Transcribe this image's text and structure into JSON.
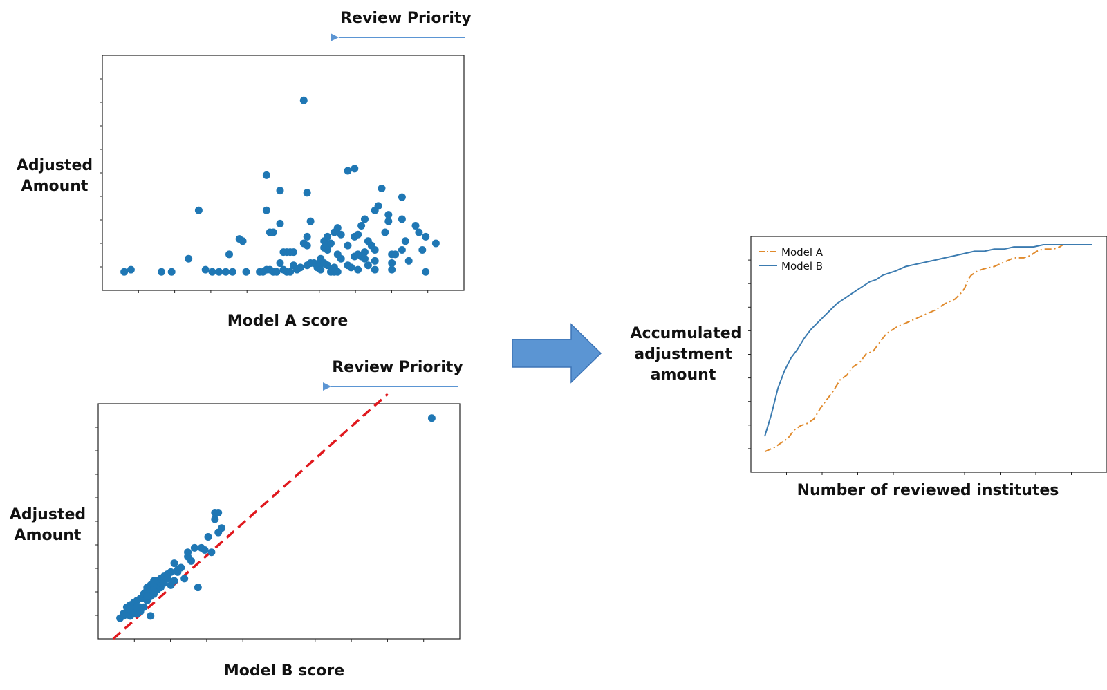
{
  "colors": {
    "point": "#1f77b4",
    "model_a_line": "#e08a2c",
    "model_b_line": "#3b7bb0",
    "diagonal": "#e0191e",
    "arrow_fill": "#5b95d3",
    "arrow_stroke": "#3d74b6",
    "priority_arrow": "#5b95d3"
  },
  "labels": {
    "review_priority_top": "Review Priority",
    "review_priority_bottom": "Review Priority",
    "transition_arrow_icon": "right-arrow-icon"
  },
  "chart_data": [
    {
      "type": "scatter",
      "xlabel": "Model A score",
      "ylabel_lines": [
        "Adjusted",
        "Amount"
      ],
      "xlim": [
        0,
        100
      ],
      "ylim": [
        0,
        100
      ],
      "grid": false,
      "points": [
        [
          4,
          4
        ],
        [
          6,
          5
        ],
        [
          15,
          4
        ],
        [
          18,
          4
        ],
        [
          23,
          10
        ],
        [
          26,
          32
        ],
        [
          28,
          5
        ],
        [
          30,
          4
        ],
        [
          32,
          4
        ],
        [
          34,
          4
        ],
        [
          36,
          4
        ],
        [
          35,
          12
        ],
        [
          38,
          19
        ],
        [
          39,
          18
        ],
        [
          40,
          4
        ],
        [
          44,
          4
        ],
        [
          45,
          4
        ],
        [
          46,
          5
        ],
        [
          47,
          5
        ],
        [
          48,
          4
        ],
        [
          49,
          4
        ],
        [
          46,
          48
        ],
        [
          46,
          32
        ],
        [
          47,
          22
        ],
        [
          48,
          22
        ],
        [
          50,
          26
        ],
        [
          50,
          41
        ],
        [
          51,
          13
        ],
        [
          51,
          5
        ],
        [
          50,
          8
        ],
        [
          52,
          13
        ],
        [
          53,
          13
        ],
        [
          52,
          4
        ],
        [
          53,
          4
        ],
        [
          54,
          13
        ],
        [
          54,
          7
        ],
        [
          55,
          5
        ],
        [
          56,
          6
        ],
        [
          57,
          17
        ],
        [
          57,
          82
        ],
        [
          58,
          7
        ],
        [
          58,
          16
        ],
        [
          58,
          20
        ],
        [
          58,
          40
        ],
        [
          59,
          8
        ],
        [
          59,
          27
        ],
        [
          60,
          8
        ],
        [
          61,
          6
        ],
        [
          62,
          5
        ],
        [
          62,
          8
        ],
        [
          62,
          10
        ],
        [
          63,
          8
        ],
        [
          63,
          15
        ],
        [
          63,
          18
        ],
        [
          64,
          7
        ],
        [
          64,
          14
        ],
        [
          64,
          16
        ],
        [
          64,
          20
        ],
        [
          65,
          4
        ],
        [
          65,
          17
        ],
        [
          66,
          6
        ],
        [
          66,
          4
        ],
        [
          66,
          22
        ],
        [
          67,
          4
        ],
        [
          67,
          12
        ],
        [
          68,
          10
        ],
        [
          68,
          21
        ],
        [
          67,
          24
        ],
        [
          70,
          7
        ],
        [
          70,
          16
        ],
        [
          70,
          50
        ],
        [
          71,
          6
        ],
        [
          72,
          11
        ],
        [
          72,
          20
        ],
        [
          72,
          51
        ],
        [
          73,
          5
        ],
        [
          73,
          21
        ],
        [
          73,
          12
        ],
        [
          74,
          11
        ],
        [
          74,
          25
        ],
        [
          75,
          13
        ],
        [
          75,
          28
        ],
        [
          75,
          10
        ],
        [
          76,
          18
        ],
        [
          76,
          7
        ],
        [
          77,
          16
        ],
        [
          78,
          14
        ],
        [
          78,
          5
        ],
        [
          78,
          9
        ],
        [
          78,
          32
        ],
        [
          79,
          34
        ],
        [
          80,
          42
        ],
        [
          81,
          22
        ],
        [
          82,
          30
        ],
        [
          82,
          27
        ],
        [
          83,
          5
        ],
        [
          83,
          12
        ],
        [
          83,
          8
        ],
        [
          84,
          12
        ],
        [
          86,
          28
        ],
        [
          86,
          38
        ],
        [
          86,
          14
        ],
        [
          87,
          18
        ],
        [
          88,
          9
        ],
        [
          90,
          25
        ],
        [
          91,
          22
        ],
        [
          92,
          14
        ],
        [
          93,
          4
        ],
        [
          93,
          20
        ],
        [
          96,
          17
        ]
      ]
    },
    {
      "type": "scatter",
      "xlabel": "Model B score",
      "ylabel_lines": [
        "Adjusted",
        "Amount"
      ],
      "xlim": [
        0,
        100
      ],
      "ylim": [
        0,
        100
      ],
      "grid": false,
      "diagonal": [
        [
          2,
          0
        ],
        [
          83,
          100
        ]
      ],
      "points": [
        [
          4,
          5
        ],
        [
          5,
          6
        ],
        [
          5,
          7
        ],
        [
          6,
          8
        ],
        [
          6,
          10
        ],
        [
          7,
          11
        ],
        [
          7,
          6
        ],
        [
          8,
          9
        ],
        [
          8,
          12
        ],
        [
          9,
          13
        ],
        [
          9,
          7
        ],
        [
          10,
          10
        ],
        [
          10,
          14
        ],
        [
          11,
          14
        ],
        [
          11,
          16
        ],
        [
          12,
          18
        ],
        [
          12,
          19
        ],
        [
          12,
          13
        ],
        [
          13,
          20
        ],
        [
          13,
          17
        ],
        [
          13,
          15
        ],
        [
          14,
          22
        ],
        [
          14,
          19
        ],
        [
          14,
          21
        ],
        [
          15,
          18
        ],
        [
          15,
          20
        ],
        [
          15,
          22
        ],
        [
          16,
          19
        ],
        [
          16,
          21
        ],
        [
          16,
          23
        ],
        [
          17,
          21
        ],
        [
          17,
          23
        ],
        [
          17,
          24
        ],
        [
          18,
          24
        ],
        [
          18,
          25
        ],
        [
          18,
          23
        ],
        [
          19,
          26
        ],
        [
          19,
          20
        ],
        [
          20,
          30
        ],
        [
          20,
          22
        ],
        [
          21,
          26
        ],
        [
          21,
          27
        ],
        [
          22,
          28
        ],
        [
          23,
          23
        ],
        [
          24,
          35
        ],
        [
          24,
          33
        ],
        [
          25,
          31
        ],
        [
          26,
          37
        ],
        [
          27,
          19
        ],
        [
          28,
          37
        ],
        [
          29,
          36
        ],
        [
          30,
          42
        ],
        [
          31,
          35
        ],
        [
          32,
          53
        ],
        [
          32,
          50
        ],
        [
          33,
          53
        ],
        [
          33,
          44
        ],
        [
          34,
          46
        ],
        [
          13,
          6
        ],
        [
          11,
          10
        ],
        [
          10,
          8
        ],
        [
          9,
          10
        ],
        [
          7,
          9
        ],
        [
          8,
          7
        ],
        [
          14,
          16
        ],
        [
          12,
          15
        ],
        [
          96,
          96
        ]
      ]
    },
    {
      "type": "line",
      "xlabel": "Number of reviewed institutes",
      "ylabel_lines": [
        "Accumulated",
        "adjustment",
        "amount"
      ],
      "xlim": [
        0,
        100
      ],
      "ylim": [
        0,
        100
      ],
      "grid": false,
      "legend_position": "top-left",
      "series": [
        {
          "name": "Model A",
          "style": "dash-dot",
          "x": [
            0,
            3,
            5,
            7,
            9,
            11,
            13,
            15,
            17,
            19,
            21,
            23,
            25,
            27,
            29,
            31,
            33,
            35,
            37,
            40,
            43,
            46,
            49,
            52,
            55,
            58,
            60,
            61,
            62,
            63,
            64,
            65,
            67,
            70,
            73,
            76,
            79,
            81,
            83,
            85,
            86,
            88,
            90,
            91,
            92,
            93,
            94,
            95,
            96,
            97,
            100
          ],
          "y": [
            5,
            7,
            9,
            11,
            15,
            17,
            18,
            20,
            25,
            29,
            33,
            38,
            40,
            44,
            46,
            50,
            51,
            55,
            59,
            62,
            64,
            66,
            68,
            70,
            73,
            75,
            78,
            80,
            84,
            86,
            87,
            88,
            89,
            90,
            92,
            94,
            94,
            95,
            97,
            98,
            98,
            98,
            99,
            100,
            100,
            100,
            100,
            100,
            100,
            100,
            100
          ]
        },
        {
          "name": "Model B",
          "style": "solid",
          "x": [
            0,
            2,
            4,
            6,
            8,
            10,
            12,
            14,
            16,
            18,
            20,
            22,
            24,
            26,
            28,
            30,
            32,
            34,
            36,
            38,
            40,
            43,
            46,
            49,
            52,
            55,
            58,
            61,
            64,
            67,
            70,
            73,
            76,
            79,
            82,
            85,
            88,
            91,
            94,
            97,
            100
          ],
          "y": [
            12,
            22,
            34,
            42,
            48,
            52,
            57,
            61,
            64,
            67,
            70,
            73,
            75,
            77,
            79,
            81,
            83,
            84,
            86,
            87,
            88,
            90,
            91,
            92,
            93,
            94,
            95,
            96,
            97,
            97,
            98,
            98,
            99,
            99,
            99,
            100,
            100,
            100,
            100,
            100,
            100
          ]
        }
      ]
    }
  ]
}
